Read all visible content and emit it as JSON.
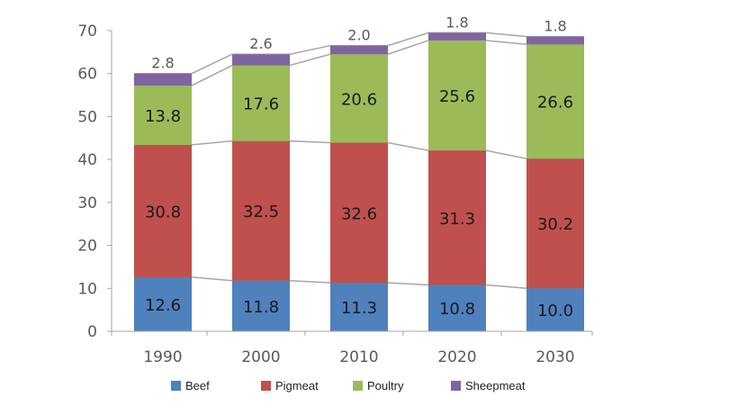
{
  "chart_data": {
    "type": "bar",
    "stacked": true,
    "categories": [
      "1990",
      "2000",
      "2010",
      "2020",
      "2030"
    ],
    "series": [
      {
        "name": "Beef",
        "color": "#4f81bd",
        "values": [
          12.6,
          11.8,
          11.3,
          10.8,
          10.0
        ]
      },
      {
        "name": "Pigmeat",
        "color": "#c0504d",
        "values": [
          30.8,
          32.5,
          32.6,
          31.3,
          30.2
        ]
      },
      {
        "name": "Poultry",
        "color": "#9bbb59",
        "values": [
          13.8,
          17.6,
          20.6,
          25.6,
          26.6
        ]
      },
      {
        "name": "Sheepmeat",
        "color": "#8064a2",
        "values": [
          2.8,
          2.6,
          2.0,
          1.8,
          1.8
        ]
      }
    ],
    "yticks": [
      "0",
      "10",
      "20",
      "30",
      "40",
      "50",
      "60",
      "70"
    ],
    "ylim": [
      0,
      70
    ],
    "title": "",
    "xlabel": "",
    "ylabel": "",
    "legend_position": "bottom",
    "series_lines": true
  }
}
